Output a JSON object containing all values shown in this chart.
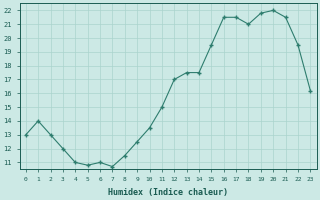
{
  "xlabel": "Humidex (Indice chaleur)",
  "x_values": [
    0,
    1,
    2,
    3,
    4,
    5,
    6,
    7,
    8,
    9,
    10,
    11,
    12,
    13,
    14,
    15,
    16,
    17,
    18,
    19,
    20,
    21,
    22,
    23
  ],
  "y_values": [
    13,
    14,
    13,
    12,
    11,
    10.8,
    11,
    10.7,
    11.5,
    12.5,
    13.5,
    15,
    17,
    17.5,
    17.5,
    19.5,
    21.5,
    21.5,
    21,
    21.8,
    22,
    21.5,
    19.5,
    16.2
  ],
  "ylim_min": 11,
  "ylim_max": 22,
  "yticks": [
    11,
    12,
    13,
    14,
    15,
    16,
    17,
    18,
    19,
    20,
    21,
    22
  ],
  "xticks": [
    0,
    1,
    2,
    3,
    4,
    5,
    6,
    7,
    8,
    9,
    10,
    11,
    12,
    13,
    14,
    15,
    16,
    17,
    18,
    19,
    20,
    21,
    22,
    23
  ],
  "line_color": "#2e7d6e",
  "marker_color": "#2e7d6e",
  "bg_color": "#cce9e5",
  "grid_color": "#aad4ce",
  "xlabel_color": "#1a5c52",
  "tick_color": "#1a5c52",
  "axis_color": "#1a5c52"
}
